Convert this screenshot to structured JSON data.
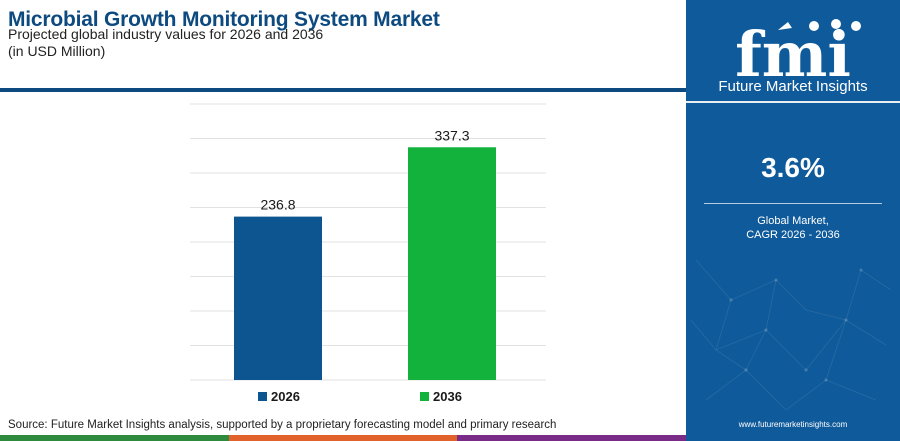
{
  "header": {
    "title": "Microbial Growth Monitoring System Market",
    "subtitle": "Projected global industry values for 2026 and 2036",
    "unit": "(in USD Million)"
  },
  "chart_data": {
    "type": "bar",
    "categories": [
      "2026",
      "2036"
    ],
    "values": [
      236.8,
      337.3
    ],
    "value_labels": [
      "236.8",
      "337.3"
    ],
    "colors": [
      "#0d5590",
      "#12b23c"
    ],
    "ylim": [
      0,
      400
    ],
    "gridlines": true,
    "legend_position": "bottom-center"
  },
  "footer": {
    "source": "Source: Future Market Insights analysis, supported by a proprietary forecasting model and primary research",
    "strip_colors": [
      "#2e8b3d",
      "#e2622c",
      "#7a2b87"
    ]
  },
  "sidebar": {
    "logo_letters": "fmi",
    "logo_name": "Future Market Insights",
    "cagr_value": "3.6%",
    "cagr_line1": "Global Market,",
    "cagr_line2": "CAGR 2026 - 2036",
    "website": "www.futuremarketinsights.com",
    "background": "#0f5a9a"
  }
}
